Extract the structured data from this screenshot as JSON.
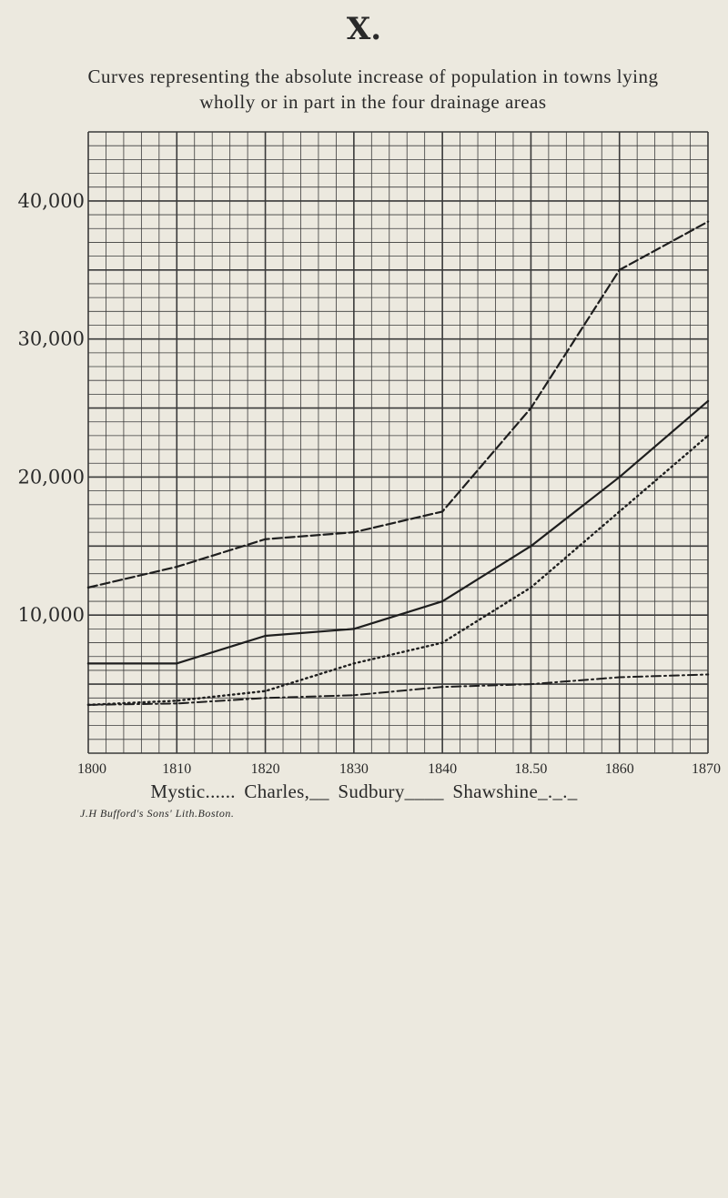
{
  "plate": {
    "number": "X."
  },
  "title": {
    "line1": "Curves representing the absolute increase of population in towns lying",
    "line2": "wholly or in part in the four drainage areas"
  },
  "legend": {
    "mystic": "Mystic......",
    "charles": "Charles,__",
    "sudbury": "Sudbury____",
    "shawshine": "Shawshine_._._"
  },
  "credit": "J.H Bufford's Sons' Lith.Boston.",
  "chart_data": {
    "type": "line",
    "title": "Curves representing the absolute increase of population in towns lying wholly or in part in the four drainage areas",
    "x": [
      1800,
      1810,
      1820,
      1830,
      1840,
      1850,
      1860,
      1870
    ],
    "x_tick_labels": [
      "1800",
      "1810",
      "1820",
      "1830",
      "1840",
      "18.50",
      "1860",
      "1870"
    ],
    "xlim": [
      1800,
      1870
    ],
    "ylim": [
      0,
      45000
    ],
    "y_ticks": [
      10000,
      20000,
      30000,
      40000
    ],
    "y_tick_labels": [
      "10,000",
      "20,000",
      "30,000",
      "40,000"
    ],
    "grid": true,
    "legend_position": "bottom",
    "series": [
      {
        "name": "Charles",
        "style": "long-dash",
        "values": [
          12000,
          13500,
          15500,
          16000,
          17500,
          25000,
          35000,
          38500
        ]
      },
      {
        "name": "Sudbury",
        "style": "solid",
        "values": [
          6500,
          6500,
          8500,
          9000,
          11000,
          15000,
          20000,
          25500
        ]
      },
      {
        "name": "Mystic",
        "style": "dotted",
        "values": [
          3500,
          3800,
          4500,
          6500,
          8000,
          12000,
          17500,
          23000
        ]
      },
      {
        "name": "Shawshine",
        "style": "dash-dot",
        "values": [
          3500,
          3600,
          4000,
          4200,
          4800,
          5000,
          5500,
          5700
        ]
      }
    ]
  }
}
